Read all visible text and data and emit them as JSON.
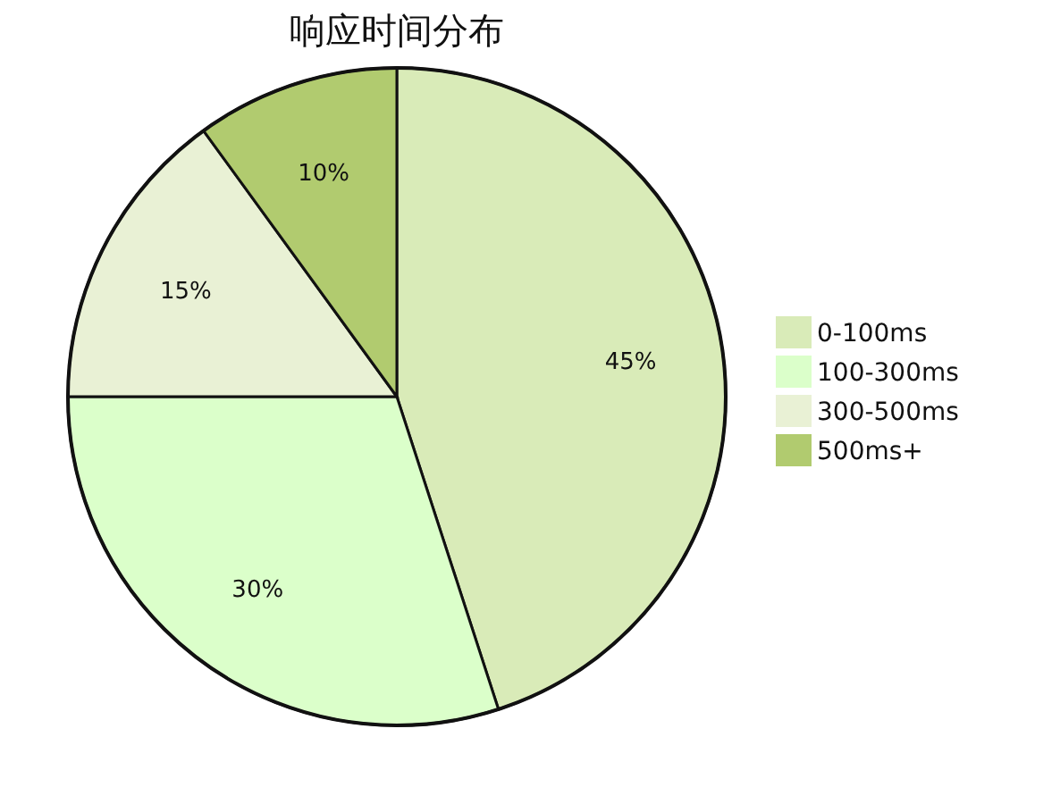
{
  "chart_data": {
    "type": "pie",
    "title": "响应时间分布",
    "categories": [
      "0-100ms",
      "100-300ms",
      "300-500ms",
      "500ms+"
    ],
    "values": [
      45,
      30,
      15,
      10
    ],
    "colors": [
      "#d9ebb8",
      "#dbffca",
      "#e9f1d5",
      "#b1cb6f"
    ],
    "value_labels": [
      "45%",
      "30%",
      "15%",
      "10%"
    ],
    "legend": "right"
  }
}
